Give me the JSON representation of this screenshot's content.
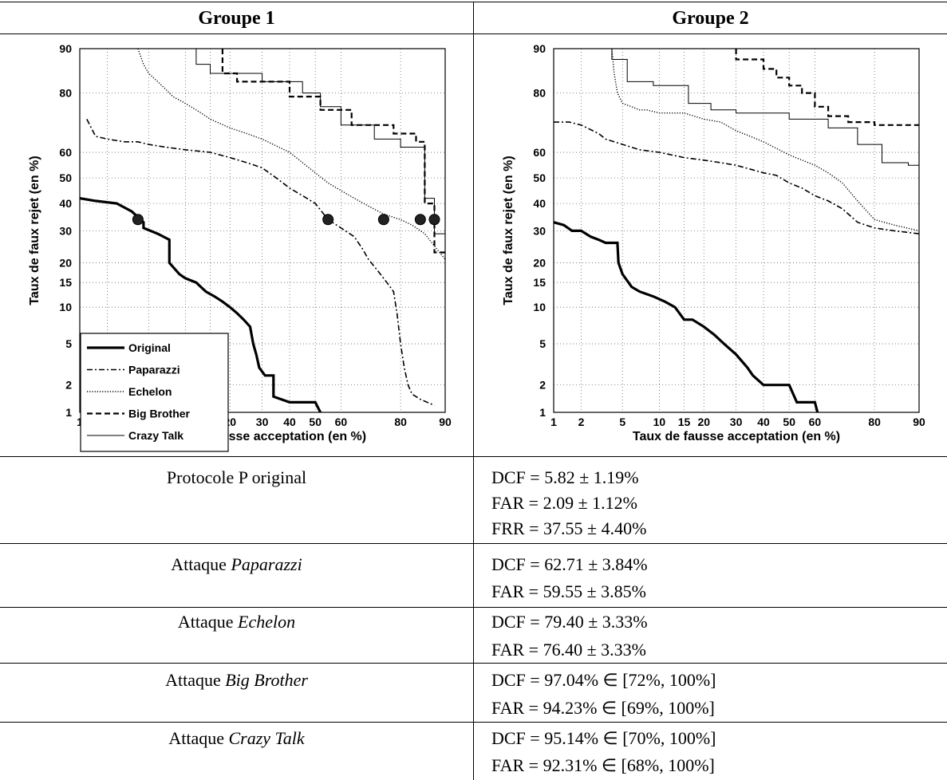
{
  "headers": {
    "group1": "Groupe 1",
    "group2": "Groupe 2"
  },
  "axes": {
    "xlabel": "Taux de fausse acceptation (en %)",
    "ylabel": "Taux de faux rejet (en %)",
    "x_ticks": [
      "1",
      "2",
      "5",
      "10",
      "15",
      "20",
      "30",
      "40",
      "50",
      "60",
      "80",
      "90"
    ],
    "y_ticks": [
      "1",
      "2",
      "5",
      "10",
      "15",
      "20",
      "30",
      "40",
      "50",
      "60",
      "80",
      "90"
    ]
  },
  "legend": [
    "Original",
    "Paparazzi",
    "Echelon",
    "Big Brother",
    "Crazy Talk"
  ],
  "chart_data": [
    {
      "type": "line",
      "title": "Groupe 1",
      "xlabel": "Taux de fausse acceptation (en %)",
      "ylabel": "Taux de faux rejet (en %)",
      "xscale": "normal-deviate (DET)",
      "yscale": "normal-deviate (DET)",
      "xlim": [
        1,
        90
      ],
      "ylim": [
        1,
        90
      ],
      "grid": true,
      "legend_position": "bottom-left",
      "series": [
        {
          "name": "Original",
          "style": "thick-solid",
          "x": [
            1,
            1.5,
            2.5,
            3.5,
            4.5,
            4.5,
            6,
            7.5,
            7.5,
            9,
            10,
            12,
            14,
            16,
            18,
            20,
            22,
            24,
            26,
            27,
            28,
            29,
            31,
            34,
            34,
            40,
            50,
            52
          ],
          "y": [
            42,
            41,
            40,
            37,
            33,
            31,
            29,
            27,
            20,
            17,
            16,
            15,
            13,
            12,
            11,
            10,
            9,
            8,
            7,
            5,
            4,
            3,
            2.5,
            2.5,
            1.5,
            1.3,
            1.3,
            1
          ]
        },
        {
          "name": "Paparazzi",
          "style": "dash-dot",
          "x": [
            1.2,
            1.5,
            2,
            3,
            4,
            5,
            7,
            10,
            15,
            20,
            25,
            30,
            35,
            40,
            45,
            50,
            55,
            60,
            65,
            68,
            70,
            73,
            76,
            78,
            79,
            80,
            81,
            82,
            83,
            85,
            88
          ],
          "y": [
            72,
            66,
            65,
            64,
            64,
            63,
            62,
            61,
            60,
            58,
            56,
            54,
            50,
            46,
            43,
            40,
            34,
            31,
            28,
            24,
            21,
            18,
            15,
            13,
            9,
            5,
            3,
            2,
            1.6,
            1.4,
            1.2
          ]
        },
        {
          "name": "Echelon",
          "style": "dotted",
          "x": [
            4,
            4.5,
            5,
            6,
            7,
            8,
            10,
            13,
            15,
            20,
            25,
            30,
            40,
            50,
            55,
            60,
            65,
            70,
            75,
            80,
            83,
            86,
            88,
            90
          ],
          "y": [
            90,
            87,
            85,
            83,
            81,
            79,
            77,
            74,
            72,
            69,
            67,
            65,
            60,
            52,
            48,
            45,
            42,
            39,
            36,
            34,
            32,
            29,
            25,
            21
          ]
        },
        {
          "name": "Big Brother",
          "style": "dashed",
          "x": [
            18,
            18,
            22,
            22,
            40,
            40,
            52,
            52,
            64,
            64,
            78,
            78,
            84,
            84,
            86,
            86,
            88,
            88,
            90
          ],
          "y": [
            90,
            85,
            85,
            83,
            83,
            79,
            79,
            75,
            75,
            70,
            70,
            67,
            67,
            64,
            64,
            40,
            40,
            23,
            23
          ]
        },
        {
          "name": "Crazy Talk",
          "style": "thin-solid",
          "x": [
            12,
            12,
            15,
            15,
            30,
            30,
            45,
            45,
            52,
            52,
            60,
            60,
            72,
            72,
            80,
            80,
            86,
            86,
            88,
            88,
            90
          ],
          "y": [
            90,
            87,
            87,
            85,
            85,
            83,
            83,
            80,
            80,
            76,
            76,
            70,
            70,
            65,
            65,
            62,
            62,
            42,
            42,
            29,
            29
          ]
        }
      ],
      "operating_points": {
        "x": [
          4,
          55,
          75,
          85,
          88
        ],
        "y": [
          34,
          34,
          34,
          34,
          34
        ]
      }
    },
    {
      "type": "line",
      "title": "Groupe 2",
      "xlabel": "Taux de fausse acceptation (en %)",
      "ylabel": "Taux de faux rejet (en %)",
      "xscale": "normal-deviate (DET)",
      "yscale": "normal-deviate (DET)",
      "xlim": [
        1,
        90
      ],
      "ylim": [
        1,
        90
      ],
      "grid": true,
      "series": [
        {
          "name": "Original",
          "style": "thick-solid",
          "x": [
            1,
            1.3,
            1.6,
            2,
            2.5,
            3,
            3.5,
            4.5,
            4.6,
            5,
            6,
            7,
            9,
            11,
            13,
            15,
            17,
            20,
            23,
            26,
            30,
            34,
            36,
            40,
            50,
            53,
            60,
            61
          ],
          "y": [
            33,
            32,
            30,
            30,
            28,
            27,
            26,
            26,
            20,
            17,
            14,
            13,
            12,
            11,
            10,
            8,
            8,
            7,
            6,
            5,
            4,
            3,
            2.5,
            2,
            2,
            1.3,
            1.3,
            1
          ]
        },
        {
          "name": "Paparazzi",
          "style": "dash-dot",
          "x": [
            1,
            1.5,
            2,
            3,
            3.5,
            5,
            7,
            10,
            15,
            20,
            25,
            30,
            40,
            45,
            50,
            55,
            60,
            65,
            70,
            75,
            80,
            85,
            90
          ],
          "y": [
            71,
            71,
            70,
            67,
            65,
            63,
            61,
            60,
            58,
            57,
            56,
            55,
            52,
            51,
            48,
            46,
            43,
            41,
            38,
            33,
            31,
            30,
            29
          ]
        },
        {
          "name": "Echelon",
          "style": "dotted",
          "x": [
            4,
            4.2,
            4.5,
            5,
            6,
            7,
            8,
            10,
            15,
            20,
            25,
            30,
            35,
            40,
            50,
            60,
            65,
            70,
            75,
            80,
            85,
            90
          ],
          "y": [
            90,
            85,
            80,
            77,
            76,
            75,
            75,
            74,
            74,
            72,
            71,
            68,
            66,
            64,
            59,
            55,
            52,
            48,
            41,
            34,
            32,
            30
          ]
        },
        {
          "name": "Big Brother",
          "style": "dashed",
          "x": [
            30,
            30,
            40,
            40,
            45,
            45,
            50,
            50,
            55,
            55,
            60,
            60,
            65,
            65,
            72,
            72,
            80,
            80,
            90
          ],
          "y": [
            90,
            88,
            88,
            86,
            86,
            84,
            84,
            82,
            82,
            80,
            80,
            76,
            76,
            73,
            73,
            71,
            71,
            70,
            70
          ]
        },
        {
          "name": "Crazy Talk",
          "style": "thin-solid",
          "x": [
            4,
            4,
            5.5,
            5.5,
            9,
            9,
            16,
            16,
            22,
            22,
            30,
            30,
            50,
            50,
            65,
            65,
            75,
            75,
            82,
            82,
            88,
            88,
            90
          ],
          "y": [
            90,
            88,
            88,
            83,
            83,
            82,
            82,
            77,
            77,
            75,
            75,
            74,
            74,
            72,
            72,
            69,
            69,
            63,
            63,
            56,
            56,
            55,
            55
          ]
        }
      ]
    }
  ],
  "results": [
    {
      "label_prefix": "Protocole P original",
      "label_italic": "",
      "lines": [
        "DCF = 5.82 ± 1.19%",
        "FAR = 2.09 ± 1.12%",
        "FRR = 37.55 ± 4.40%"
      ]
    },
    {
      "label_prefix": "Attaque ",
      "label_italic": "Paparazzi",
      "lines": [
        "DCF = 62.71 ± 3.84%",
        "FAR = 59.55 ± 3.85%"
      ]
    },
    {
      "label_prefix": "Attaque ",
      "label_italic": "Echelon",
      "lines": [
        "DCF = 79.40 ± 3.33%",
        "FAR = 76.40 ± 3.33%"
      ]
    },
    {
      "label_prefix": "Attaque ",
      "label_italic": "Big Brother",
      "lines": [
        "DCF = 97.04% ∈ [72%, 100%]",
        "FAR = 94.23% ∈ [69%, 100%]"
      ]
    },
    {
      "label_prefix": "Attaque ",
      "label_italic": "Crazy Talk",
      "lines": [
        "DCF = 95.14% ∈ [70%, 100%]",
        "FAR = 92.31% ∈ [68%, 100%]"
      ]
    }
  ]
}
